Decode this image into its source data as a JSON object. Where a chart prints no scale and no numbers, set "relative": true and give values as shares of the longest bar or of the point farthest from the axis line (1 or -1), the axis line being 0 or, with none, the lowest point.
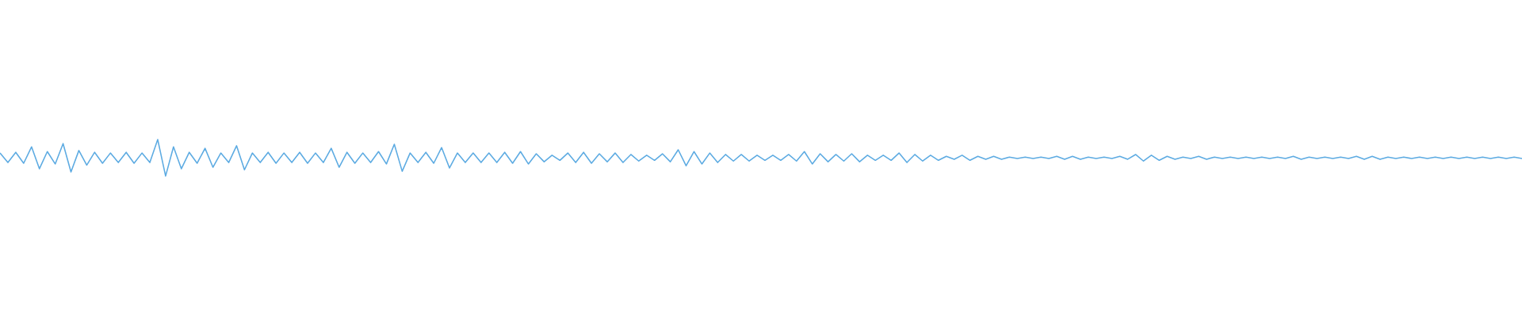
{
  "chart_data": {
    "type": "line",
    "relative": true,
    "categories": [
      null,
      null,
      null,
      null,
      null,
      null,
      null,
      null,
      null,
      null,
      null,
      null,
      null,
      null,
      null,
      null,
      null,
      null,
      null,
      null,
      null,
      null,
      null,
      null,
      null,
      null,
      null,
      null,
      null,
      null,
      null,
      null,
      null,
      null,
      null,
      null,
      null,
      null,
      null,
      null,
      null,
      null,
      null,
      null,
      null,
      null,
      null,
      null,
      null,
      null,
      null,
      null,
      null,
      null,
      null,
      null,
      null,
      null,
      null,
      null,
      null,
      null,
      null,
      null,
      null,
      null,
      null,
      null,
      null,
      null,
      null,
      null,
      null,
      null,
      null,
      null,
      null,
      null,
      null,
      null,
      null,
      null,
      null,
      null,
      null,
      null,
      null,
      null,
      null,
      null,
      null,
      null,
      null,
      null,
      null,
      null,
      null,
      null,
      null,
      null,
      null,
      null,
      null,
      null,
      null,
      null,
      null,
      null,
      null,
      null,
      null,
      null,
      null,
      null,
      null,
      null,
      null,
      null,
      null,
      null,
      null,
      null,
      null,
      null,
      null,
      null,
      null,
      null,
      null,
      null,
      null,
      null,
      null,
      null,
      null,
      null,
      null,
      null,
      null,
      null,
      null,
      null,
      null,
      null,
      null,
      null,
      null,
      null,
      null,
      null,
      null,
      null,
      null,
      null,
      null,
      null,
      null,
      null,
      null,
      null,
      null,
      null,
      null,
      null,
      null,
      null,
      null,
      null,
      null,
      null,
      null,
      null,
      null,
      null,
      null,
      null,
      null,
      null,
      null,
      null,
      null,
      null,
      null,
      null,
      null,
      null,
      null,
      null,
      null,
      null,
      null,
      null,
      null,
      null
    ],
    "series": [
      {
        "color": "#5dabe2",
        "values": [
          0.63,
          0.37,
          0.65,
          0.35,
          0.8,
          0.2,
          0.67,
          0.33,
          0.89,
          0.11,
          0.7,
          0.3,
          0.65,
          0.35,
          0.63,
          0.37,
          0.65,
          0.35,
          0.63,
          0.37,
          1,
          0,
          0.8,
          0.2,
          0.65,
          0.35,
          0.76,
          0.24,
          0.63,
          0.37,
          0.83,
          0.17,
          0.63,
          0.37,
          0.65,
          0.35,
          0.63,
          0.37,
          0.65,
          0.35,
          0.63,
          0.37,
          0.76,
          0.24,
          0.65,
          0.35,
          0.63,
          0.37,
          0.67,
          0.33,
          0.87,
          0.13,
          0.63,
          0.37,
          0.65,
          0.35,
          0.78,
          0.22,
          0.63,
          0.37,
          0.63,
          0.37,
          0.63,
          0.37,
          0.65,
          0.35,
          0.67,
          0.33,
          0.61,
          0.39,
          0.57,
          0.43,
          0.63,
          0.37,
          0.65,
          0.35,
          0.61,
          0.39,
          0.63,
          0.37,
          0.59,
          0.41,
          0.57,
          0.43,
          0.61,
          0.39,
          0.72,
          0.28,
          0.67,
          0.33,
          0.63,
          0.37,
          0.59,
          0.41,
          0.59,
          0.41,
          0.57,
          0.43,
          0.57,
          0.43,
          0.59,
          0.41,
          0.67,
          0.33,
          0.61,
          0.39,
          0.59,
          0.41,
          0.61,
          0.39,
          0.57,
          0.43,
          0.57,
          0.43,
          0.63,
          0.37,
          0.59,
          0.41,
          0.57,
          0.43,
          0.54,
          0.46,
          0.57,
          0.43,
          0.54,
          0.46,
          0.54,
          0.46,
          0.52,
          0.48,
          0.52,
          0.48,
          0.52,
          0.48,
          0.54,
          0.46,
          0.54,
          0.46,
          0.52,
          0.48,
          0.52,
          0.48,
          0.54,
          0.46,
          0.59,
          0.41,
          0.57,
          0.43,
          0.54,
          0.46,
          0.52,
          0.48,
          0.54,
          0.46,
          0.52,
          0.48,
          0.52,
          0.48,
          0.52,
          0.48,
          0.52,
          0.48,
          0.52,
          0.48,
          0.54,
          0.46,
          0.52,
          0.48,
          0.52,
          0.48,
          0.52,
          0.48,
          0.54,
          0.46,
          0.54,
          0.46,
          0.52,
          0.48,
          0.52,
          0.48,
          0.52,
          0.48,
          0.52,
          0.48,
          0.52,
          0.48,
          0.52,
          0.48,
          0.52,
          0.48,
          0.52,
          0.48,
          0.52,
          0.48
        ]
      }
    ]
  }
}
